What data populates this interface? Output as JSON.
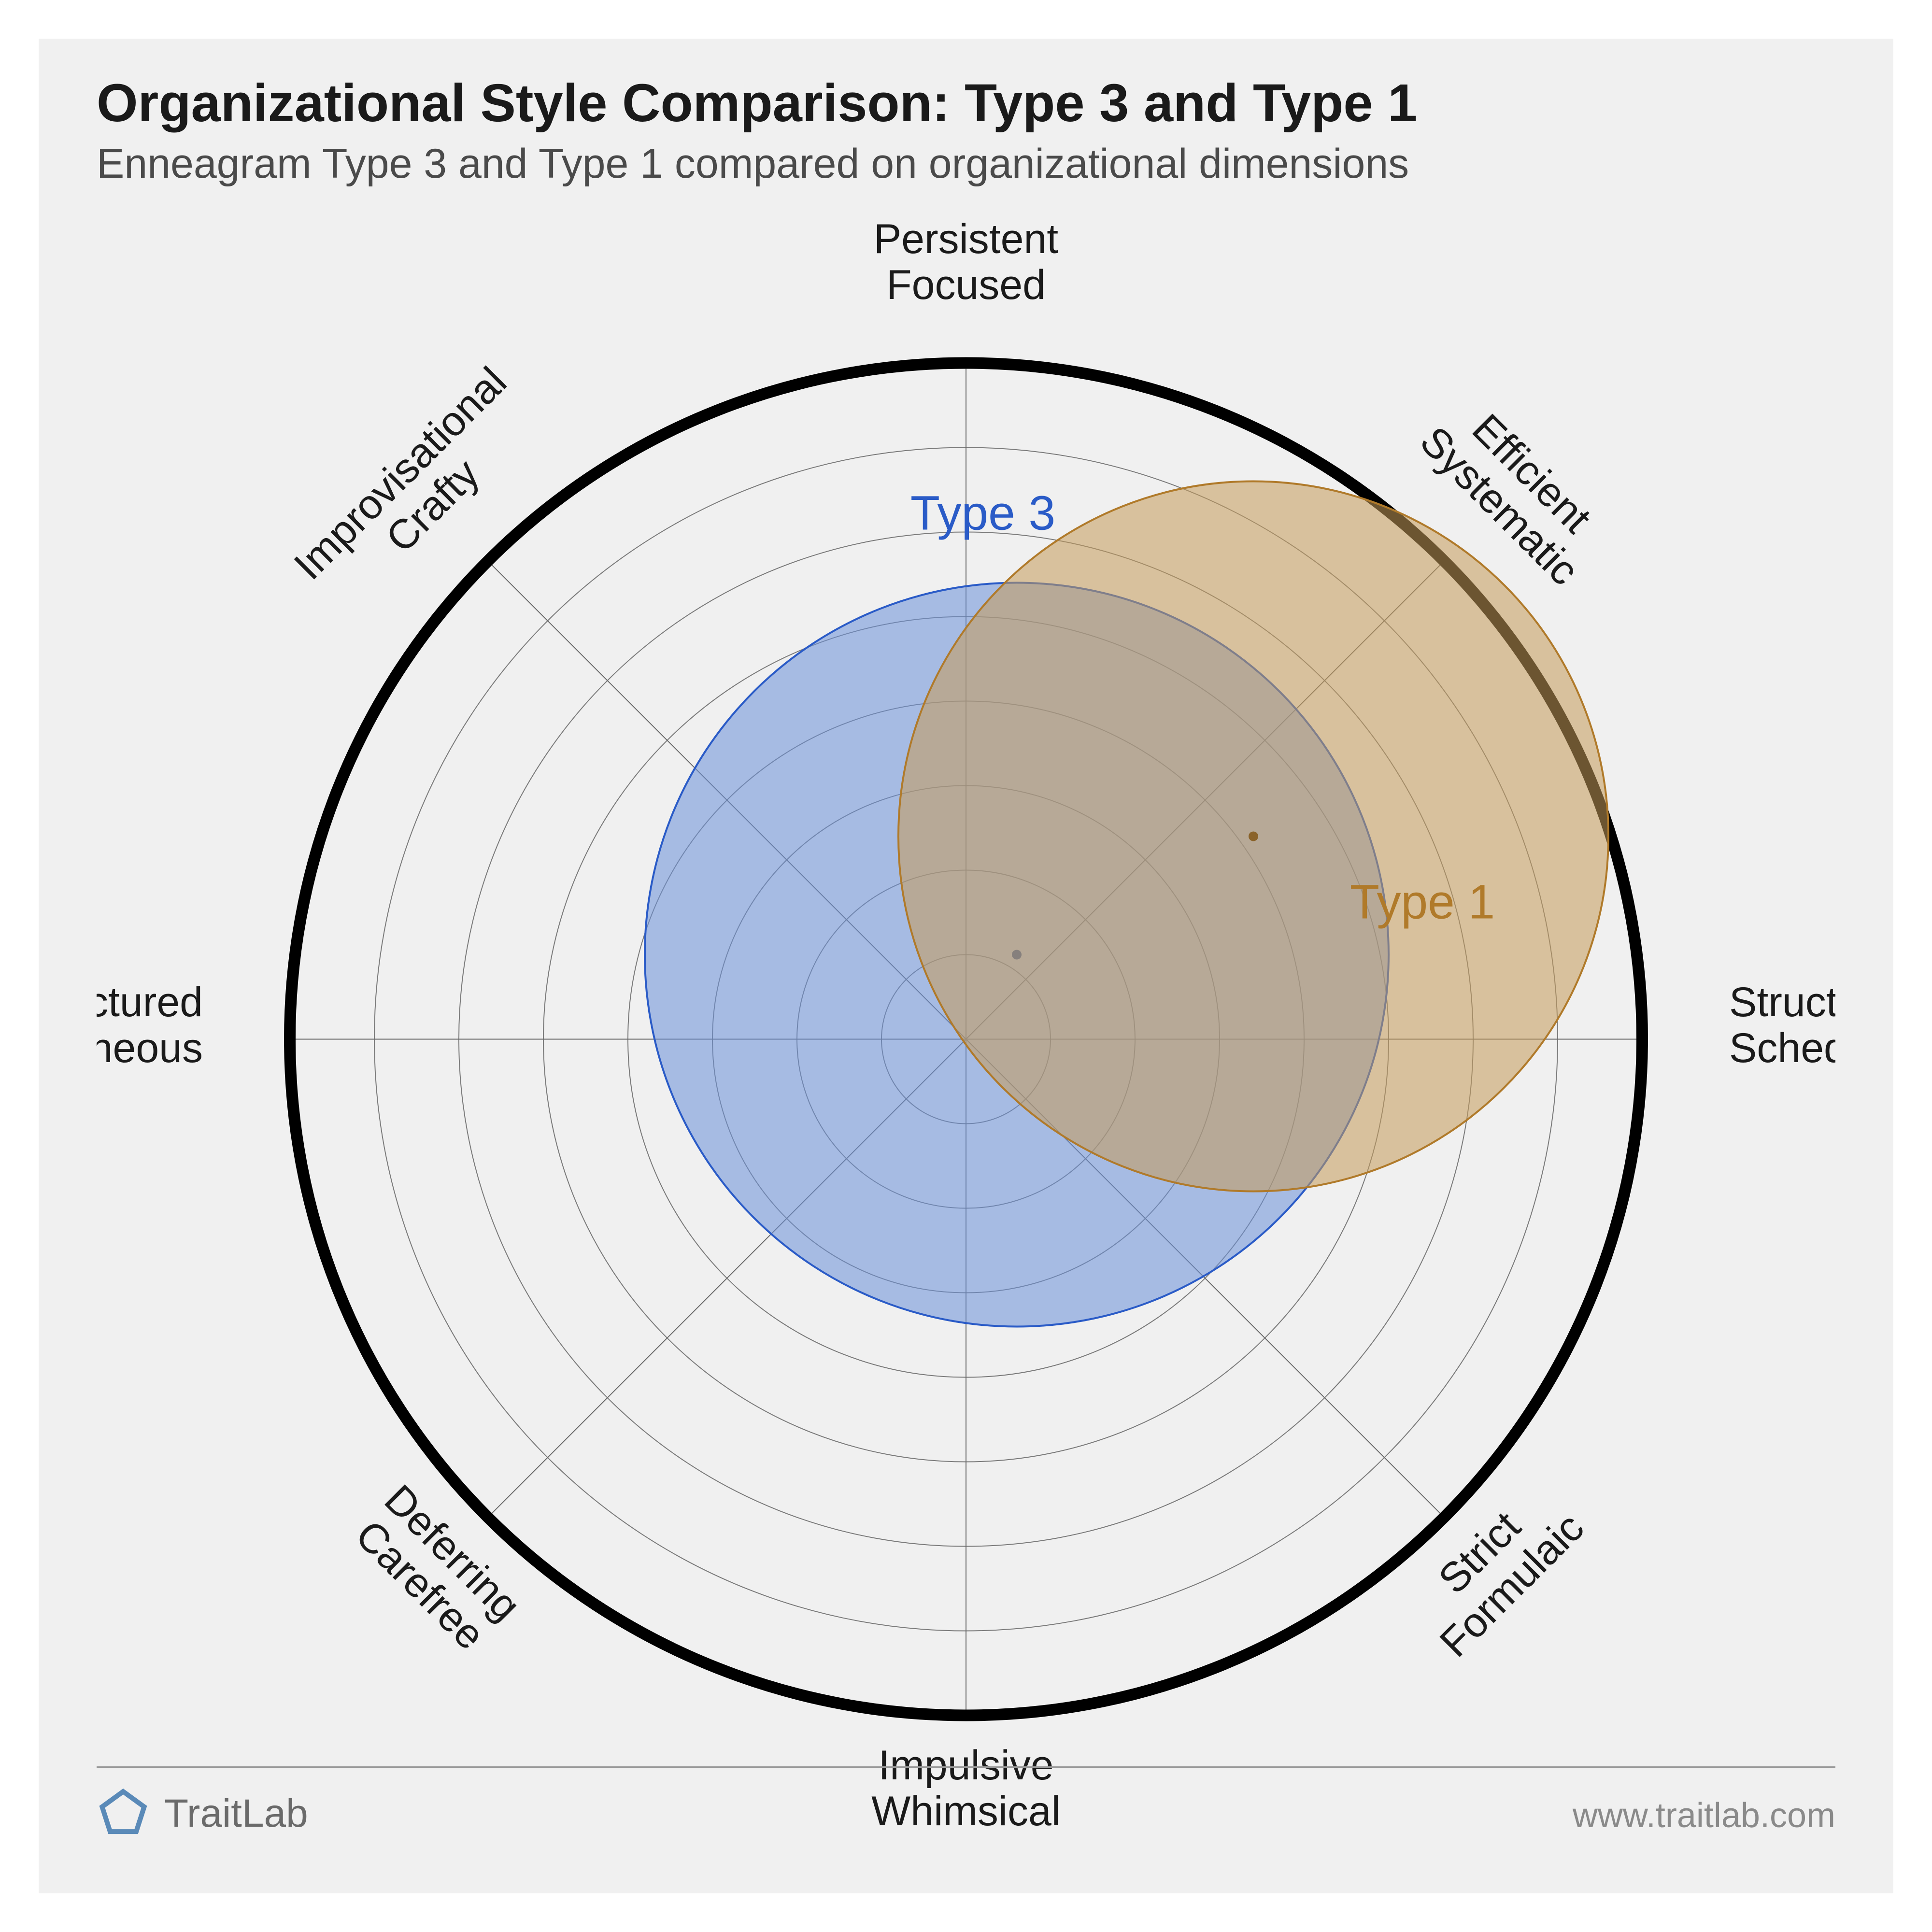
{
  "title": "Organizational Style Comparison: Type 3 and Type 1",
  "subtitle": "Enneagram Type 3 and Type 1 compared on organizational dimensions",
  "brand": "TraitLab",
  "url": "www.traitlab.com",
  "chart": {
    "type": "polar-bubble",
    "background_color": "#f0f0f0",
    "outer_ring": {
      "stroke": "#000000",
      "stroke_width": 24,
      "radius": 1400
    },
    "grid": {
      "rings": 8,
      "ring_step_radius": 175,
      "ring_stroke": "#7a7a7a",
      "ring_stroke_width": 2,
      "spoke_stroke": "#6a6a6a",
      "spoke_stroke_width": 2
    },
    "axes": [
      {
        "angle_deg": 90,
        "lines": [
          "Persistent",
          "Focused"
        ]
      },
      {
        "angle_deg": 45,
        "lines": [
          "Efficient",
          "Systematic"
        ],
        "rotate": 45
      },
      {
        "angle_deg": 0,
        "lines": [
          "Structured",
          "Scheduled"
        ]
      },
      {
        "angle_deg": -45,
        "lines": [
          "Strict",
          "Formulaic"
        ],
        "rotate": -45
      },
      {
        "angle_deg": -90,
        "lines": [
          "Impulsive",
          "Whimsical"
        ]
      },
      {
        "angle_deg": -135,
        "lines": [
          "Deferring",
          "Carefree"
        ],
        "rotate": 45
      },
      {
        "angle_deg": 180,
        "lines": [
          "Unstructured",
          "Spontaneous"
        ]
      },
      {
        "angle_deg": 135,
        "lines": [
          "Improvisational",
          "Crafty"
        ],
        "rotate": -45
      }
    ],
    "axis_label_fontsize": 86,
    "axis_label_color": "#1a1a1a",
    "axis_label_offset": 180,
    "series": [
      {
        "name": "Type 3",
        "cx_units": 0.6,
        "cy_units": 1.0,
        "r_units": 4.4,
        "fill": "#6a8fd8",
        "fill_opacity": 0.55,
        "stroke": "#2a5bc7",
        "stroke_width": 4,
        "center_dot_fill": "#3a5fa8",
        "label_color": "#2a5bc7",
        "label_dx": -70,
        "label_dy": -880
      },
      {
        "name": "Type 1",
        "cx_units": 3.4,
        "cy_units": 2.4,
        "r_units": 4.2,
        "fill": "#c49a5a",
        "fill_opacity": 0.55,
        "stroke": "#b07a2a",
        "stroke_width": 4,
        "center_dot_fill": "#8a632a",
        "label_color": "#b07a2a",
        "label_dx": 350,
        "label_dy": 170
      }
    ],
    "series_label_fontsize": 100
  },
  "brand_logo_color": "#5a8ab8"
}
